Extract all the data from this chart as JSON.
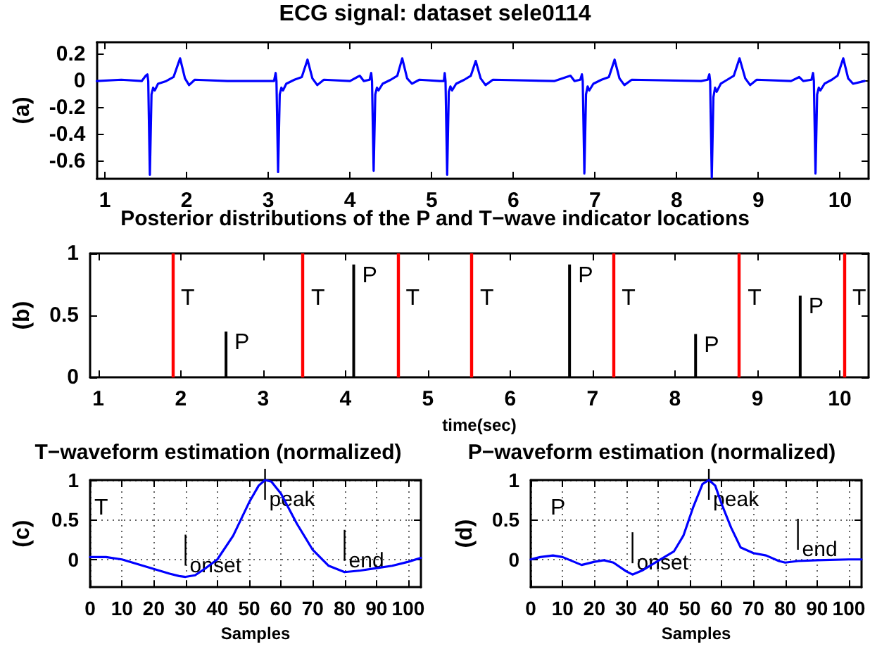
{
  "chart_data": [
    {
      "type": "line",
      "title": "ECG signal: dataset sele0114",
      "ylabel": "(a)",
      "color": "#0000ff",
      "xlim": [
        0.9,
        10.35
      ],
      "ylim": [
        -0.73,
        0.29
      ],
      "xticks": [
        1,
        2,
        3,
        4,
        5,
        6,
        7,
        8,
        9,
        10
      ],
      "yticks": [
        -0.6,
        -0.4,
        -0.2,
        0,
        0.2
      ],
      "x": [
        0.9,
        1.2,
        1.45,
        1.5,
        1.52,
        1.53,
        1.55,
        1.57,
        1.59,
        1.61,
        1.65,
        1.75,
        1.84,
        1.92,
        1.98,
        2.03,
        2.1,
        2.5,
        3.0,
        3.07,
        3.09,
        3.1,
        3.12,
        3.14,
        3.16,
        3.18,
        3.22,
        3.32,
        3.41,
        3.48,
        3.54,
        3.6,
        3.68,
        4.0,
        4.12,
        4.17,
        4.24,
        4.26,
        4.27,
        4.29,
        4.31,
        4.33,
        4.35,
        4.4,
        4.5,
        4.58,
        4.64,
        4.7,
        4.76,
        4.85,
        5.1,
        5.15,
        5.16,
        5.17,
        5.19,
        5.21,
        5.23,
        5.25,
        5.3,
        5.4,
        5.48,
        5.54,
        5.6,
        5.66,
        5.75,
        6.5,
        6.7,
        6.75,
        6.82,
        6.84,
        6.85,
        6.87,
        6.89,
        6.91,
        6.93,
        6.98,
        7.08,
        7.17,
        7.24,
        7.3,
        7.36,
        7.45,
        8.3,
        8.38,
        8.4,
        8.41,
        8.43,
        8.45,
        8.47,
        8.49,
        8.54,
        8.62,
        8.7,
        8.77,
        8.84,
        8.9,
        8.98,
        9.4,
        9.5,
        9.55,
        9.65,
        9.67,
        9.68,
        9.7,
        9.72,
        9.74,
        9.76,
        9.81,
        9.9,
        9.97,
        10.04,
        10.1,
        10.16,
        10.3
      ],
      "values": [
        0,
        0.01,
        0,
        0.04,
        0.05,
        0,
        -0.7,
        -0.1,
        -0.05,
        -0.07,
        -0.02,
        0,
        0.03,
        0.17,
        0.02,
        -0.03,
        0.01,
        0,
        0,
        0,
        0.06,
        0,
        -0.68,
        -0.1,
        -0.05,
        -0.07,
        -0.02,
        0.01,
        0.03,
        0.16,
        0.02,
        -0.03,
        0.01,
        0,
        0.04,
        0,
        0.01,
        0.06,
        0,
        -0.67,
        -0.1,
        -0.05,
        -0.07,
        -0.02,
        0.01,
        0.04,
        0.17,
        0.02,
        -0.02,
        0.01,
        0,
        0,
        0.06,
        0,
        -0.7,
        -0.08,
        -0.04,
        -0.07,
        -0.02,
        0.01,
        0.04,
        0.15,
        0.02,
        -0.03,
        0.01,
        0,
        0.04,
        0,
        0.01,
        0.05,
        0,
        -0.69,
        -0.1,
        -0.04,
        -0.07,
        -0.02,
        0.01,
        0.03,
        0.16,
        0.02,
        -0.03,
        0.01,
        0,
        0.01,
        0.05,
        0,
        -0.72,
        -0.12,
        -0.05,
        -0.08,
        -0.02,
        0.01,
        0.04,
        0.17,
        0.02,
        -0.03,
        0.01,
        0,
        0.03,
        0,
        0.01,
        0.06,
        0,
        -0.69,
        -0.1,
        -0.05,
        -0.07,
        -0.02,
        0.01,
        0.04,
        0.17,
        0.02,
        -0.02,
        0
      ]
    },
    {
      "type": "bar",
      "title": "Posterior distributions of the P and T−wave indicator locations",
      "xlabel": "time(sec)",
      "ylabel": "(b)",
      "color": "#000000",
      "xlim": [
        0.9,
        10.35
      ],
      "ylim": [
        0,
        1
      ],
      "xticks": [
        1,
        2,
        3,
        4,
        5,
        6,
        7,
        8,
        9,
        10
      ],
      "yticks": [
        0,
        0.5,
        1
      ],
      "x": [
        2.55,
        4.1,
        6.72,
        8.25,
        9.52
      ],
      "values": [
        0.37,
        0.91,
        0.91,
        0.35,
        0.66
      ],
      "ref_lines": [
        {
          "axis": "x",
          "value": 1.9,
          "label": "T",
          "color": "#ff0000"
        },
        {
          "axis": "x",
          "value": 3.48,
          "label": "T",
          "color": "#ff0000"
        },
        {
          "axis": "x",
          "value": 4.63,
          "label": "T",
          "color": "#ff0000"
        },
        {
          "axis": "x",
          "value": 5.53,
          "label": "T",
          "color": "#ff0000"
        },
        {
          "axis": "x",
          "value": 7.25,
          "label": "T",
          "color": "#ff0000"
        },
        {
          "axis": "x",
          "value": 8.78,
          "label": "T",
          "color": "#ff0000"
        },
        {
          "axis": "x",
          "value": 10.05,
          "label": "T",
          "color": "#ff0000"
        }
      ],
      "annotations": [
        {
          "text": "P",
          "x": 2.55,
          "y": 0.37
        },
        {
          "text": "P",
          "x": 4.1,
          "y": 0.91
        },
        {
          "text": "P",
          "x": 6.72,
          "y": 0.91
        },
        {
          "text": "P",
          "x": 8.25,
          "y": 0.35
        },
        {
          "text": "P",
          "x": 9.52,
          "y": 0.66
        }
      ]
    },
    {
      "type": "line",
      "title": "T−waveform estimation (normalized)",
      "xlabel": "Samples",
      "ylabel": "(c)",
      "color": "#0000ff",
      "grid": true,
      "xlim": [
        0,
        104
      ],
      "ylim": [
        -0.35,
        1
      ],
      "xticks": [
        0,
        10,
        20,
        30,
        40,
        50,
        60,
        70,
        80,
        90,
        100
      ],
      "yticks": [
        0,
        0.5,
        1
      ],
      "x": [
        0,
        5,
        10,
        15,
        20,
        25,
        28,
        30,
        33,
        36,
        40,
        45,
        50,
        53,
        55,
        57,
        60,
        65,
        70,
        75,
        80,
        85,
        90,
        95,
        100,
        104
      ],
      "values": [
        0.03,
        0.03,
        0,
        -0.06,
        -0.12,
        -0.18,
        -0.21,
        -0.22,
        -0.2,
        -0.12,
        0,
        0.3,
        0.72,
        0.93,
        1,
        0.98,
        0.83,
        0.45,
        0.12,
        -0.08,
        -0.16,
        -0.14,
        -0.11,
        -0.08,
        -0.03,
        0.02
      ],
      "annotations": [
        "T",
        {
          "text": "onset",
          "x": 30,
          "y": -0.22
        },
        {
          "text": "peak",
          "x": 55,
          "y": 1
        },
        {
          "text": "end",
          "x": 80,
          "y": -0.16
        }
      ]
    },
    {
      "type": "line",
      "title": "P−waveform estimation (normalized)",
      "xlabel": "Samples",
      "ylabel": "(d)",
      "color": "#0000ff",
      "grid": true,
      "xlim": [
        0,
        104
      ],
      "ylim": [
        -0.35,
        1
      ],
      "xticks": [
        0,
        10,
        20,
        30,
        40,
        50,
        60,
        70,
        80,
        90,
        100
      ],
      "yticks": [
        0,
        0.5,
        1
      ],
      "x": [
        0,
        3,
        7,
        10,
        16,
        20,
        23,
        26,
        30,
        32,
        35,
        40,
        45,
        48,
        51,
        54,
        56,
        58,
        60,
        63,
        66,
        70,
        74,
        78,
        80,
        84,
        90,
        100,
        104
      ],
      "values": [
        0,
        0.03,
        0.05,
        0.03,
        -0.07,
        -0.03,
        -0.01,
        -0.04,
        -0.15,
        -0.19,
        -0.14,
        -0.02,
        0.1,
        0.3,
        0.65,
        0.95,
        1,
        0.93,
        0.7,
        0.4,
        0.15,
        0.08,
        0.05,
        -0.02,
        -0.04,
        -0.02,
        -0.01,
        0,
        0
      ],
      "annotations": [
        "P",
        {
          "text": "onset",
          "x": 32,
          "y": -0.19
        },
        {
          "text": "peak",
          "x": 56,
          "y": 1
        },
        {
          "text": "end",
          "x": 84,
          "y": -0.02
        }
      ]
    }
  ]
}
